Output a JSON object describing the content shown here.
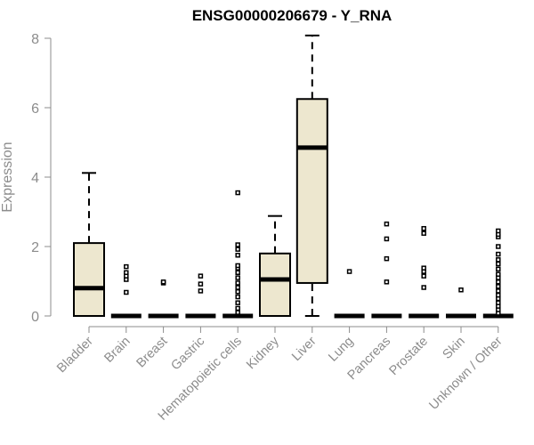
{
  "chart_data": {
    "type": "box",
    "title": "ENSG00000206679 - Y_RNA",
    "xlabel": "",
    "ylabel": "Expression",
    "ylim": [
      0,
      8.3
    ],
    "yticks": [
      0,
      2,
      4,
      6,
      8
    ],
    "grid": false,
    "box_fill": "#ede7cf",
    "axis_color": "#8c8c8c",
    "categories": [
      "Bladder",
      "Brain",
      "Breast",
      "Gastric",
      "Hematopoietic cells",
      "Kidney",
      "Liver",
      "Lung",
      "Pancreas",
      "Prostate",
      "Skin",
      "Unknown / Other"
    ],
    "boxes": [
      {
        "category": "Bladder",
        "whisker_low": 0,
        "q1": 0,
        "median": 0.8,
        "q3": 2.1,
        "whisker_high": 4.12,
        "outliers": []
      },
      {
        "category": "Brain",
        "whisker_low": 0,
        "q1": 0,
        "median": 0,
        "q3": 0,
        "whisker_high": 0,
        "outliers": [
          0.68,
          1.05,
          1.15,
          1.25,
          1.42
        ]
      },
      {
        "category": "Breast",
        "whisker_low": 0,
        "q1": 0,
        "median": 0,
        "q3": 0,
        "whisker_high": 0,
        "outliers": [
          0.95,
          0.98
        ]
      },
      {
        "category": "Gastric",
        "whisker_low": 0,
        "q1": 0,
        "median": 0,
        "q3": 0,
        "whisker_high": 0,
        "outliers": [
          0.72,
          0.92,
          1.15
        ]
      },
      {
        "category": "Hematopoietic cells",
        "whisker_low": 0,
        "q1": 0,
        "median": 0,
        "q3": 0,
        "whisker_high": 0,
        "outliers": [
          0.1,
          0.22,
          0.38,
          0.55,
          0.7,
          0.82,
          0.95,
          1.1,
          1.25,
          1.38,
          1.45,
          1.75,
          1.92,
          2.05,
          3.55
        ]
      },
      {
        "category": "Kidney",
        "whisker_low": 0,
        "q1": 0,
        "median": 1.05,
        "q3": 1.8,
        "whisker_high": 2.88,
        "outliers": []
      },
      {
        "category": "Liver",
        "whisker_low": 0,
        "q1": 0.95,
        "median": 4.85,
        "q3": 6.25,
        "whisker_high": 8.08,
        "outliers": []
      },
      {
        "category": "Lung",
        "whisker_low": 0,
        "q1": 0,
        "median": 0,
        "q3": 0,
        "whisker_high": 0,
        "outliers": [
          1.28
        ]
      },
      {
        "category": "Pancreas",
        "whisker_low": 0,
        "q1": 0,
        "median": 0,
        "q3": 0,
        "whisker_high": 0,
        "outliers": [
          0.98,
          1.65,
          2.22,
          2.65
        ]
      },
      {
        "category": "Prostate",
        "whisker_low": 0,
        "q1": 0,
        "median": 0,
        "q3": 0,
        "whisker_high": 0,
        "outliers": [
          0.82,
          1.15,
          1.28,
          1.38,
          2.38,
          2.52
        ]
      },
      {
        "category": "Skin",
        "whisker_low": 0,
        "q1": 0,
        "median": 0,
        "q3": 0,
        "whisker_high": 0,
        "outliers": [
          0.75
        ]
      },
      {
        "category": "Unknown / Other",
        "whisker_low": 0,
        "q1": 0,
        "median": 0,
        "q3": 0,
        "whisker_high": 0,
        "outliers": [
          0.08,
          0.18,
          0.28,
          0.38,
          0.5,
          0.6,
          0.72,
          0.85,
          0.98,
          1.1,
          1.2,
          1.35,
          1.5,
          1.62,
          1.78,
          2.0,
          2.28,
          2.35,
          2.45
        ]
      }
    ]
  }
}
